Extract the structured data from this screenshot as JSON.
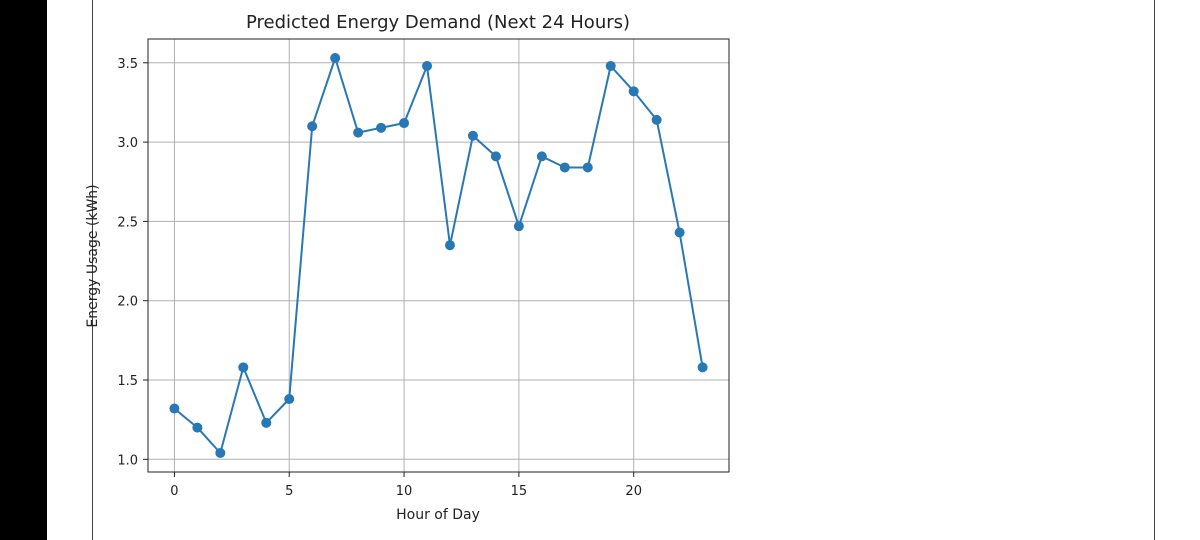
{
  "chart_data": {
    "type": "line",
    "title": "Predicted Energy Demand (Next 24 Hours)",
    "xlabel": "Hour of Day",
    "ylabel": "Energy Usage (kWh)",
    "x": [
      0,
      1,
      2,
      3,
      4,
      5,
      6,
      7,
      8,
      9,
      10,
      11,
      12,
      13,
      14,
      15,
      16,
      17,
      18,
      19,
      20,
      21,
      22,
      23
    ],
    "series": [
      {
        "values": [
          1.32,
          1.2,
          1.04,
          1.58,
          1.23,
          1.38,
          3.1,
          3.53,
          3.06,
          3.09,
          3.12,
          3.48,
          2.35,
          3.04,
          2.91,
          2.47,
          2.91,
          2.84,
          2.84,
          3.48,
          3.32,
          3.14,
          2.43,
          1.58
        ],
        "color": "#2878b5",
        "marker": "circle"
      }
    ],
    "xlim": [
      -1.15,
      24.15
    ],
    "ylim": [
      0.92,
      3.65
    ],
    "xticks": [
      "0",
      "5",
      "10",
      "15",
      "20"
    ],
    "yticks": [
      "1.0",
      "1.5",
      "2.0",
      "2.5",
      "3.0",
      "3.5"
    ],
    "grid": true
  }
}
